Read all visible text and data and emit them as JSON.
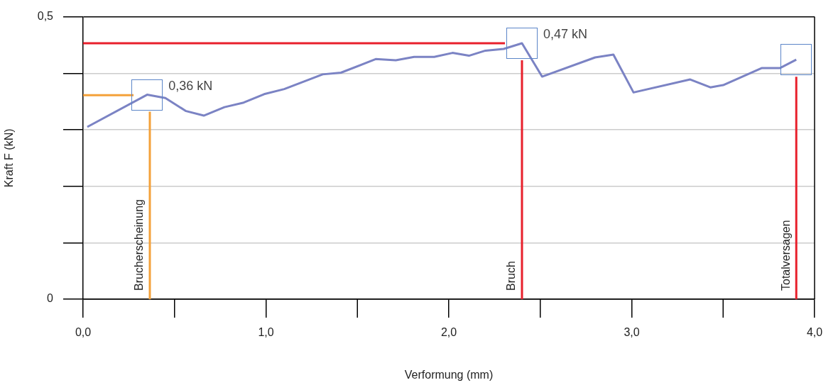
{
  "chart_data": {
    "type": "line",
    "xlabel": "Verformung (mm)",
    "ylabel": "Kraft F (kN)",
    "xlim": [
      0,
      4
    ],
    "xticks": [
      {
        "value": 0,
        "label": "0,0"
      },
      {
        "value": 1,
        "label": "1,0"
      },
      {
        "value": 2,
        "label": "2,0"
      },
      {
        "value": 3,
        "label": "3,0"
      },
      {
        "value": 4,
        "label": "4,0"
      }
    ],
    "ylim": [
      0,
      0.5
    ],
    "yticks": [
      {
        "value": 0,
        "label": "0"
      },
      {
        "value": 0.1,
        "label": null
      },
      {
        "value": 0.2,
        "label": null
      },
      {
        "value": 0.3,
        "label": null
      },
      {
        "value": 0.4,
        "label": null
      },
      {
        "value": 0.5,
        "label": "0,5"
      }
    ],
    "grid": "y",
    "legend": false,
    "marker": "none",
    "line_style": "solid",
    "series": [
      {
        "color": "#7b83c4",
        "x": [
          0.023,
          0.35,
          0.45,
          0.563,
          0.66,
          0.773,
          0.878,
          0.99,
          1.1,
          1.31,
          1.41,
          1.6,
          1.71,
          1.81,
          1.92,
          2.02,
          2.11,
          2.2,
          2.3,
          2.4,
          2.51,
          2.8,
          2.9,
          3.01,
          3.32,
          3.43,
          3.5,
          3.71,
          3.81,
          3.9
        ],
        "values": [
          0.305,
          0.362,
          0.356,
          0.333,
          0.325,
          0.34,
          0.348,
          0.363,
          0.372,
          0.398,
          0.401,
          0.425,
          0.423,
          0.429,
          0.429,
          0.436,
          0.431,
          0.44,
          0.443,
          0.453,
          0.394,
          0.428,
          0.433,
          0.366,
          0.389,
          0.375,
          0.379,
          0.409,
          0.409,
          0.424
        ]
      },
      {
        "color": "#f4a13a",
        "x": [
          0,
          0.276
        ],
        "values": [
          0.361,
          0.361
        ]
      },
      {
        "color": "#e8202c",
        "x": [
          0,
          2.307
        ],
        "values": [
          0.453,
          0.453
        ]
      }
    ],
    "ref_lines": [
      {
        "axis": "x",
        "value": 0.365,
        "label": "Brucherscheinung",
        "color": "#f4a13a"
      },
      {
        "axis": "x",
        "value": 2.4,
        "label": "Bruch",
        "color": "#e8202c"
      },
      {
        "axis": "x",
        "value": 3.9,
        "label": "Totalversagen",
        "color": "#e8202c"
      }
    ],
    "annotations": [
      {
        "text": "0,36 kN",
        "x": 0.35,
        "y": 0.362
      },
      {
        "text": "0,47 kN",
        "x": 2.4,
        "y": 0.453
      }
    ]
  }
}
